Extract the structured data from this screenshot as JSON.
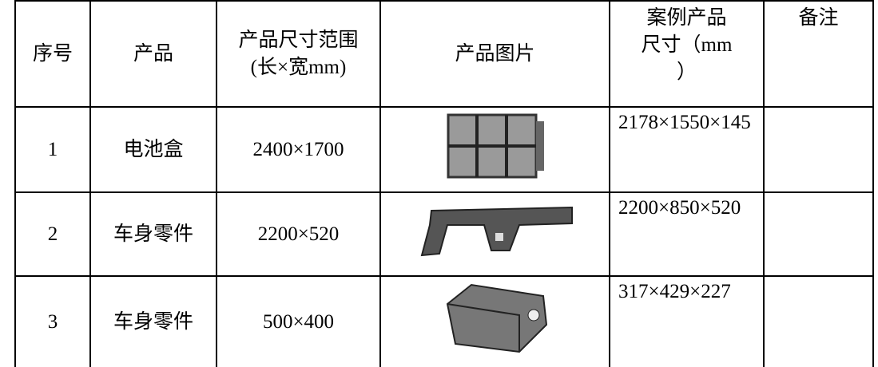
{
  "table": {
    "header": [
      [
        "序号"
      ],
      [
        "产品"
      ],
      [
        "产品尺寸范围",
        "(长×宽mm)"
      ],
      [
        "产品图片"
      ],
      [
        "案例产品",
        "尺寸（mm",
        "）"
      ],
      [
        "备注"
      ]
    ],
    "rows": [
      [
        "1",
        "电池盒",
        "2400×1700",
        "2178×1550×145"
      ],
      [
        "2",
        "车身零件",
        "2200×520",
        "2200×850×520"
      ],
      [
        "3",
        "车身零件",
        "500×400",
        "317×429×227"
      ]
    ]
  }
}
